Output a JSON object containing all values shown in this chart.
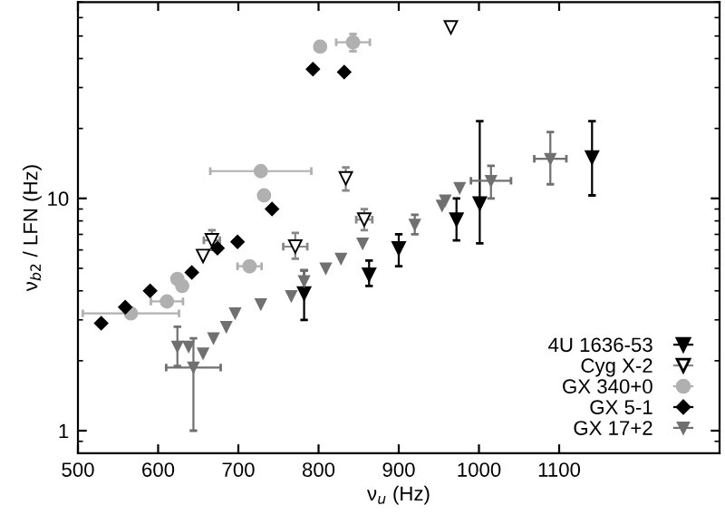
{
  "chart_data": {
    "type": "scatter",
    "xlabel": "ν$_{u}$ (Hz)",
    "ylabel": "ν$_{b2}$ / LFN (Hz)",
    "log": "y",
    "xlim": [
      500,
      1300
    ],
    "xticks": [
      500,
      600,
      700,
      800,
      900,
      1000,
      1100
    ],
    "ylim": [
      0.8,
      70
    ],
    "yticks": [
      1,
      10
    ],
    "grid": false,
    "legend": "bottom right",
    "series": [
      {
        "name": "4U 1636-53",
        "color": "#000000",
        "marker": "triangle",
        "x": [
          782,
          863,
          900,
          972,
          1001,
          1141
        ],
        "values": [
          3.9,
          4.7,
          6.1,
          8.1,
          9.5,
          15
        ],
        "errors": [
          [
            3.0,
            4.9
          ],
          [
            4.2,
            5.4
          ],
          [
            5.1,
            7.0
          ],
          [
            6.6,
            10
          ],
          [
            6.4,
            21.5
          ],
          [
            10.3,
            21.5
          ]
        ]
      },
      {
        "name": "Cyg X-2",
        "color": "#ffffff",
        "marker": "triangle",
        "x": [
          656,
          667,
          771,
          834,
          857,
          965
        ],
        "values": [
          5.65,
          6.6,
          6.2,
          12.2,
          8.1,
          54.5
        ],
        "xerrors": [
          null,
          10,
          15,
          null,
          10,
          null
        ],
        "errors": [
          null,
          [
            6.0,
            7.3
          ],
          [
            5.5,
            7.1
          ],
          [
            10.8,
            13.6
          ],
          [
            7.3,
            9.0
          ],
          null
        ]
      },
      {
        "name": "GX 340+0",
        "color": "#b0b0b0",
        "marker": "circle",
        "x": [
          566,
          611,
          624,
          630,
          714,
          728,
          732,
          802,
          843
        ],
        "values": [
          3.2,
          3.6,
          4.5,
          4.2,
          5.1,
          13.1,
          10.3,
          45,
          47
        ],
        "xerrors": [
          60,
          20,
          null,
          null,
          15,
          63,
          null,
          null,
          21
        ],
        "errors": [
          null,
          null,
          null,
          null,
          null,
          null,
          null,
          null,
          [
            43,
            51
          ]
        ]
      },
      {
        "name": "GX 5-1",
        "color": "#000000",
        "marker": "diamond",
        "x": [
          529,
          559,
          590,
          642,
          674,
          699,
          742,
          793,
          832
        ],
        "values": [
          2.9,
          3.4,
          4.0,
          4.8,
          6.1,
          6.5,
          9.0,
          36,
          35
        ]
      },
      {
        "name": "GX 17+2",
        "color": "#707070",
        "marker": "triangle",
        "x": [
          624,
          638,
          644,
          656,
          669,
          685,
          696,
          728,
          766,
          782,
          809,
          828,
          855,
          920,
          954,
          958,
          976,
          1015,
          1089
        ],
        "values": [
          2.3,
          2.3,
          1.87,
          2.15,
          2.5,
          2.8,
          3.2,
          3.5,
          3.8,
          4.4,
          5.0,
          5.5,
          6.4,
          7.7,
          9.3,
          9.8,
          11.1,
          11.9,
          14.8
        ],
        "xerrors": [
          null,
          null,
          34,
          null,
          null,
          null,
          null,
          null,
          null,
          null,
          null,
          null,
          null,
          null,
          null,
          null,
          null,
          25,
          20
        ],
        "errors": [
          [
            1.9,
            2.8
          ],
          null,
          [
            1.0,
            2.5
          ],
          null,
          null,
          null,
          null,
          null,
          null,
          [
            4.0,
            4.9
          ],
          null,
          null,
          null,
          [
            7.0,
            8.5
          ],
          null,
          null,
          null,
          [
            10,
            13.8
          ],
          [
            11.5,
            19.3
          ]
        ]
      }
    ]
  }
}
